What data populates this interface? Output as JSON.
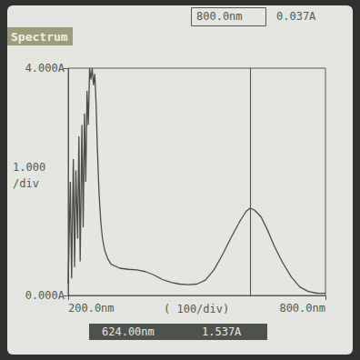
{
  "chart_data": {
    "type": "line",
    "title": "Spectrum",
    "x": [
      200,
      205,
      208,
      212,
      215,
      218,
      222,
      225,
      228,
      232,
      235,
      238,
      241,
      244,
      247,
      250,
      253,
      256,
      259,
      262,
      265,
      268,
      272,
      276,
      280,
      285,
      292,
      300,
      320,
      340,
      360,
      380,
      400,
      420,
      440,
      460,
      480,
      500,
      520,
      540,
      560,
      580,
      600,
      615,
      624,
      635,
      650,
      665,
      680,
      700,
      720,
      740,
      760,
      780,
      800
    ],
    "values": [
      0.2,
      2.0,
      0.3,
      2.4,
      0.5,
      2.2,
      1.0,
      2.8,
      0.6,
      3.0,
      1.2,
      3.2,
      2.0,
      3.6,
      3.0,
      4.0,
      3.8,
      4.0,
      3.7,
      3.9,
      3.4,
      2.6,
      1.8,
      1.3,
      1.0,
      0.8,
      0.65,
      0.55,
      0.48,
      0.46,
      0.45,
      0.42,
      0.36,
      0.28,
      0.23,
      0.2,
      0.19,
      0.2,
      0.27,
      0.45,
      0.72,
      1.02,
      1.3,
      1.48,
      1.537,
      1.5,
      1.38,
      1.15,
      0.88,
      0.58,
      0.33,
      0.15,
      0.07,
      0.04,
      0.037
    ],
    "color": "#4a4c46",
    "xlim": [
      200,
      800
    ],
    "xticks": [
      {
        "value": 200,
        "label": "200.0nm"
      },
      {
        "value": 800,
        "label": "800.0nm"
      }
    ],
    "ylim": [
      0,
      4
    ],
    "yticks": [
      {
        "value": 0,
        "label": "0.000A"
      },
      {
        "value": 4,
        "label": "4.000A"
      }
    ],
    "grid": false,
    "annotations": {
      "y_division": [
        "1.000",
        "/div"
      ],
      "x_division": "( 100/div)"
    },
    "header_readout": [
      "800.0nm",
      "0.037A"
    ],
    "cursor": {
      "x": 624,
      "readout": [
        "624.00nm",
        "1.537A"
      ]
    }
  }
}
